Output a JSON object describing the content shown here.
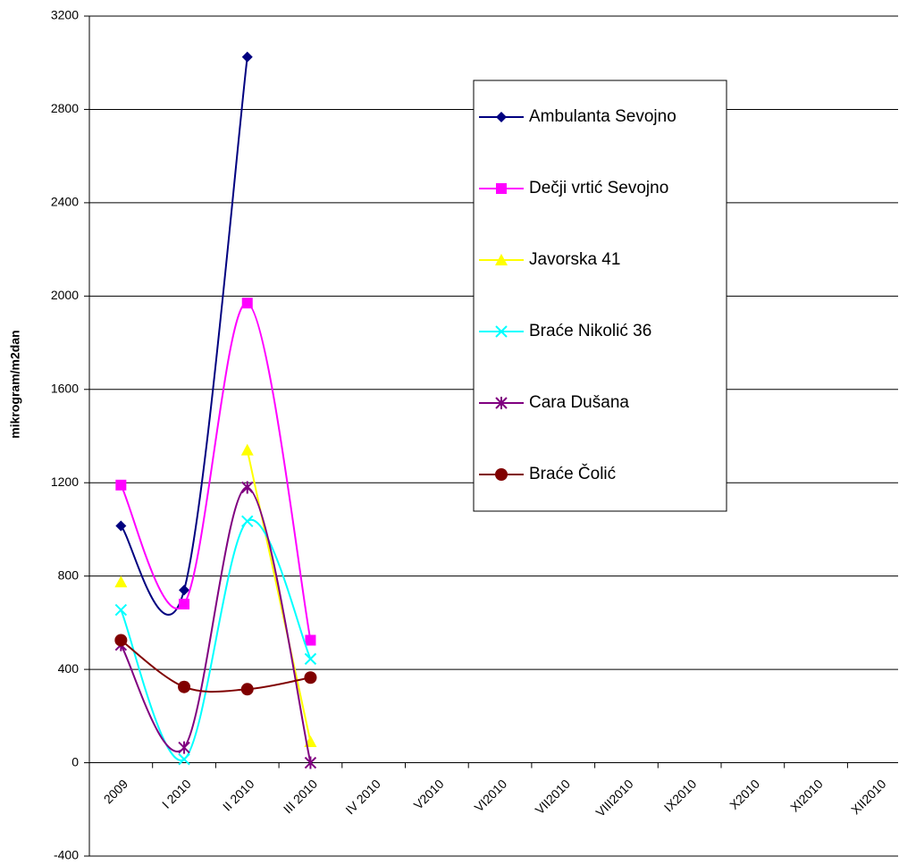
{
  "chart_data": {
    "type": "line",
    "ylabel": "mikrogram/m2dan",
    "categories": [
      "2009",
      "I 2010",
      "II 2010",
      "III 2010",
      "IV 2010",
      "V2010",
      "VI2010",
      "VII2010",
      "VIII2010",
      "IX2010",
      "X2010",
      "XI2010",
      "XII2010"
    ],
    "ylim": [
      -400,
      3200
    ],
    "yticks": [
      -400,
      0,
      400,
      800,
      1200,
      1600,
      2000,
      2400,
      2800,
      3200
    ],
    "grid": true,
    "smooth": true,
    "legend": "right",
    "series": [
      {
        "name": "Ambulanta Sevojno",
        "color": "#000080",
        "marker": "diamond",
        "values": [
          1015,
          740,
          3025,
          null,
          null,
          null,
          null,
          null,
          null,
          null,
          null,
          null,
          null
        ]
      },
      {
        "name": "Dečji vrtić Sevojno",
        "color": "#ff00ff",
        "marker": "square",
        "values": [
          1190,
          680,
          1970,
          525,
          null,
          null,
          null,
          null,
          null,
          null,
          null,
          null,
          null
        ]
      },
      {
        "name": "Javorska 41",
        "color": "#ffff00",
        "marker": "triangle",
        "values": [
          775,
          null,
          1340,
          90,
          null,
          null,
          null,
          null,
          null,
          null,
          null,
          null,
          null
        ]
      },
      {
        "name": "Braće Nikolić 36",
        "color": "#00ffff",
        "marker": "x",
        "values": [
          655,
          15,
          1035,
          445,
          null,
          null,
          null,
          null,
          null,
          null,
          null,
          null,
          null
        ]
      },
      {
        "name": "Cara Dušana",
        "color": "#800080",
        "marker": "star",
        "values": [
          505,
          65,
          1180,
          0,
          null,
          null,
          null,
          null,
          null,
          null,
          null,
          null,
          null
        ]
      },
      {
        "name": "Braće Čolić",
        "color": "#800000",
        "marker": "circle",
        "values": [
          525,
          325,
          315,
          365,
          null,
          null,
          null,
          null,
          null,
          null,
          null,
          null,
          null
        ]
      }
    ]
  }
}
